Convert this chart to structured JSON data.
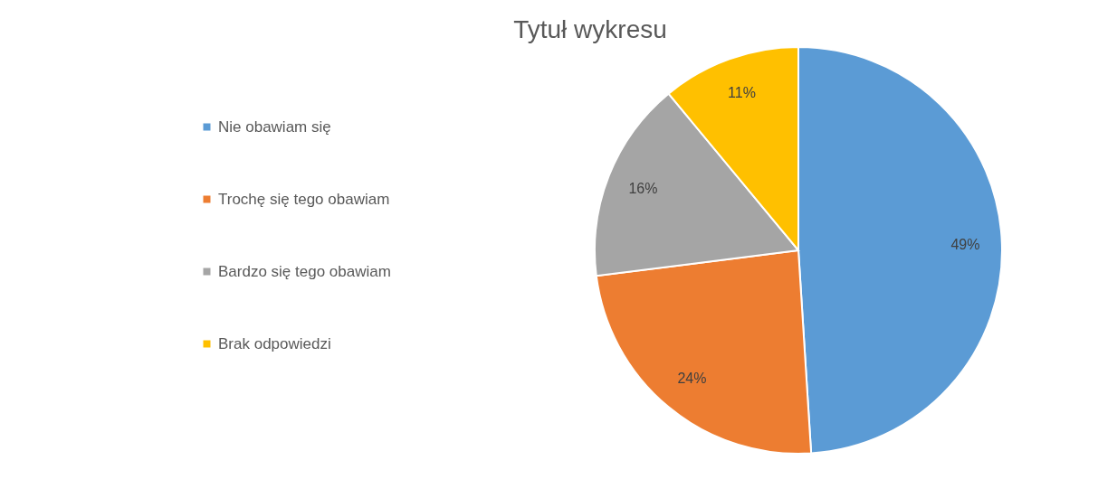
{
  "chart_data": {
    "type": "pie",
    "title": "Tytuł wykresu",
    "categories": [
      "Nie obawiam się",
      "Trochę się tego obawiam",
      "Bardzo się tego obawiam",
      "Brak odpowiedzi"
    ],
    "values": [
      49,
      24,
      16,
      11
    ],
    "colors": [
      "#5b9bd5",
      "#ed7d31",
      "#a5a5a5",
      "#ffc000"
    ],
    "value_labels": [
      "49%",
      "24%",
      "16%",
      "11%"
    ],
    "legend": "left"
  }
}
